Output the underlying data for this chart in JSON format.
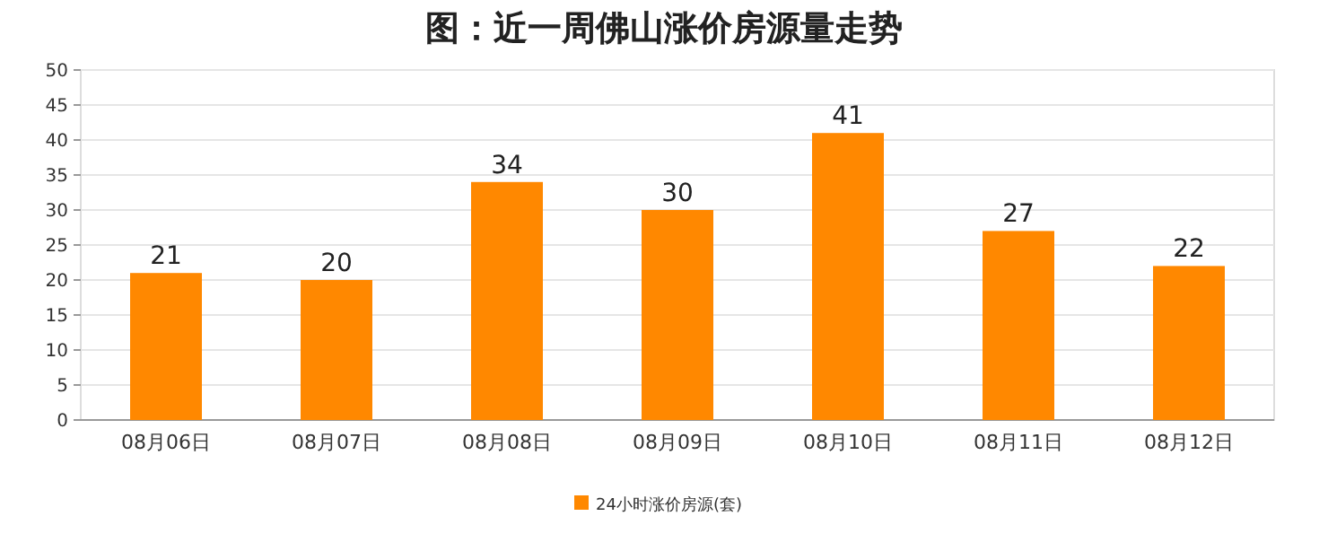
{
  "chart_data": {
    "type": "bar",
    "title": "图：近一周佛山涨价房源量走势",
    "categories": [
      "08月06日",
      "08月07日",
      "08月08日",
      "08月09日",
      "08月10日",
      "08月11日",
      "08月12日"
    ],
    "series": [
      {
        "name": "24小时涨价房源(套)",
        "color": "#ff8800",
        "values": [
          21,
          20,
          34,
          30,
          41,
          27,
          22
        ]
      }
    ],
    "ylim": [
      0,
      50
    ],
    "yticks": [
      0,
      5,
      10,
      15,
      20,
      25,
      30,
      35,
      40,
      45,
      50
    ],
    "grid": "y",
    "legend": "bottom",
    "data_labels": true
  }
}
